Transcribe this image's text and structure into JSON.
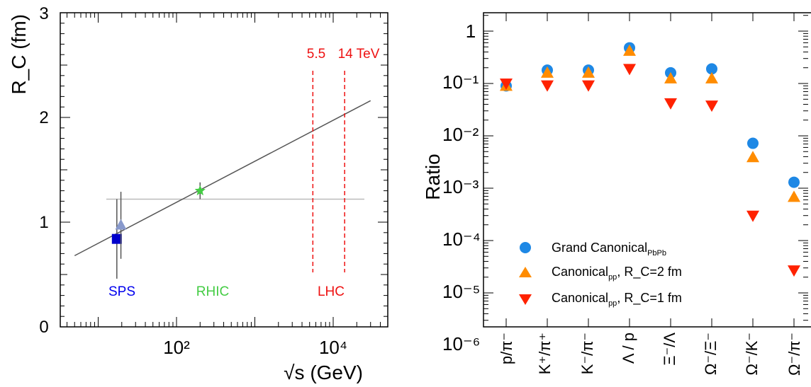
{
  "chart_data": [
    {
      "type": "scatter",
      "xlabel": "√s (GeV)",
      "ylabel": "R_C (fm)",
      "x_scale": "log",
      "x_ticks": [
        "10²",
        "10⁴"
      ],
      "y_ticks": [
        "0",
        "1",
        "2",
        "3"
      ],
      "ylim": [
        0,
        3
      ],
      "points": [
        {
          "name": "SPS",
          "x": 17.3,
          "y": 0.84,
          "marker": "square",
          "color": "#0000cc",
          "err": 0.38
        },
        {
          "name": "SPS",
          "x": 19.5,
          "y": 0.97,
          "marker": "triangle-up",
          "color": "#8899cc",
          "err": 0.32
        },
        {
          "name": "RHIC",
          "x": 200,
          "y": 1.3,
          "marker": "star",
          "color": "#44cc44",
          "err": 0.08
        }
      ],
      "fit_line": {
        "x": [
          5,
          30000
        ],
        "y": [
          0.68,
          2.16
        ],
        "color": "#555555"
      },
      "ref_line": {
        "y": 1.22,
        "color": "#bbbbbb"
      },
      "lhc_lines": [
        {
          "x": 5500,
          "label": "5.5"
        },
        {
          "x": 14000,
          "label": "14 TeV"
        }
      ],
      "region_labels": [
        {
          "text": "SPS",
          "x": 17.3,
          "color": "#0000ee"
        },
        {
          "text": "RHIC",
          "x": 200,
          "color": "#44cc44"
        },
        {
          "text": "LHC",
          "x": 9000,
          "color": "#ee1111"
        }
      ]
    },
    {
      "type": "scatter",
      "ylabel": "Ratio",
      "y_scale": "log",
      "y_ticks": [
        "10⁻⁶",
        "10⁻⁵",
        "10⁻⁴",
        "10⁻³",
        "10⁻²",
        "10⁻¹",
        "1"
      ],
      "categories": [
        "p/π⁻",
        "K⁺/π⁺",
        "K⁻/π⁻",
        "Λ / p",
        "Ξ⁻/Λ",
        "Ω⁻/Ξ⁻",
        "Ω⁻/K⁻",
        "Ω⁻/π⁻"
      ],
      "series": [
        {
          "name": "Grand Canonical",
          "sub": "PbPb",
          "extra": "",
          "marker": "circle",
          "color": "#1e88e5",
          "values": [
            0.09,
            0.18,
            0.18,
            0.48,
            0.16,
            0.19,
            0.0072,
            0.0013
          ]
        },
        {
          "name": "Canonical",
          "sub": "pp",
          "extra": ", R_C=2 fm",
          "marker": "triangle-up",
          "color": "#ff8c00",
          "values": [
            0.09,
            0.16,
            0.16,
            0.42,
            0.125,
            0.125,
            0.0039,
            0.00068
          ]
        },
        {
          "name": "Canonical",
          "sub": "pp",
          "extra": ", R_C=1 fm",
          "marker": "triangle-down",
          "color": "#ff2200",
          "values": [
            0.1,
            0.092,
            0.092,
            0.19,
            0.042,
            0.038,
            0.0003,
            2.7e-05
          ]
        }
      ]
    }
  ]
}
